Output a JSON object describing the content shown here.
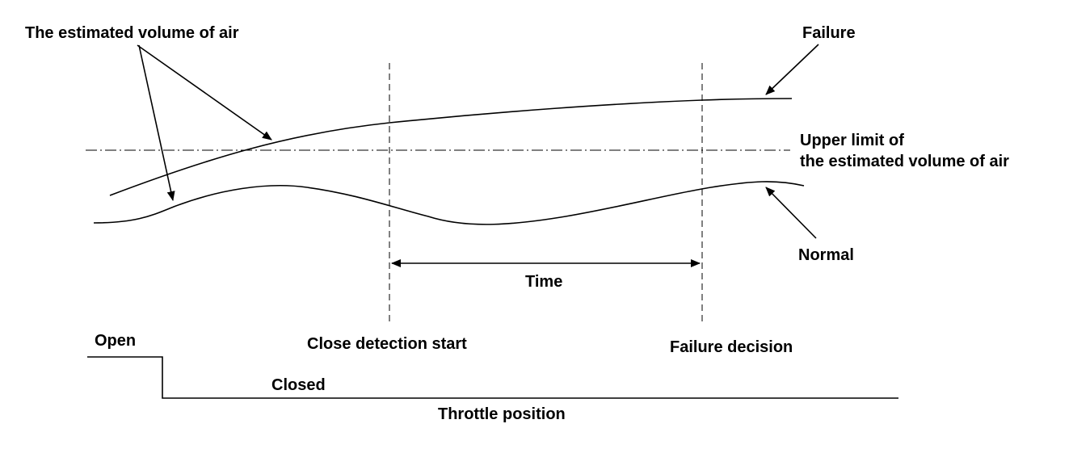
{
  "labels": {
    "estimated_volume": "The estimated volume of air",
    "failure": "Failure",
    "upper_limit_line1": "Upper limit of",
    "upper_limit_line2": "the estimated volume of air",
    "normal": "Normal",
    "time": "Time",
    "open": "Open",
    "close_detection_start": "Close detection start",
    "failure_decision": "Failure decision",
    "closed": "Closed",
    "throttle_position": "Throttle position"
  }
}
